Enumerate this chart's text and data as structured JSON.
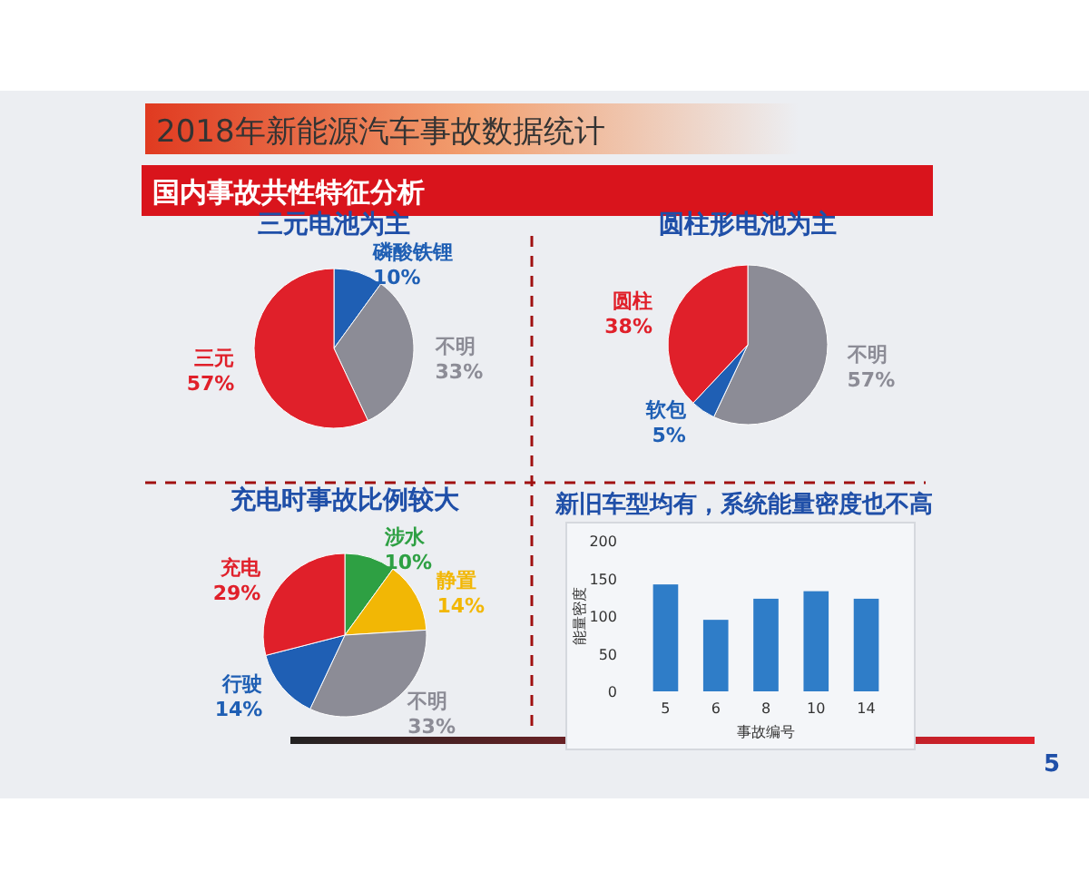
{
  "chart_data": [
    {
      "type": "pie",
      "title": "三元电池为主",
      "annotations": [
        "2018年新能源汽车事故数据统计",
        "国内事故共性特征分析",
        "5"
      ],
      "categories": [
        "磷酸铁锂",
        "不明",
        "三元"
      ],
      "values": [
        10,
        33,
        57
      ],
      "value_labels": [
        "10%",
        "33%",
        "57%"
      ],
      "colors": [
        "#1f5fb4",
        "#8c8c96",
        "#e0202a"
      ]
    },
    {
      "type": "pie",
      "title": "圆柱形电池为主",
      "categories": [
        "不明",
        "软包",
        "圆柱"
      ],
      "values": [
        57,
        5,
        38
      ],
      "value_labels": [
        "57%",
        "5%",
        "38%"
      ],
      "colors": [
        "#8c8c96",
        "#1f5fb4",
        "#e0202a"
      ]
    },
    {
      "type": "pie",
      "title": "充电时事故比例较大",
      "categories": [
        "涉水",
        "静置",
        "不明",
        "行驶",
        "充电"
      ],
      "values": [
        10,
        14,
        33,
        14,
        29
      ],
      "value_labels": [
        "10%",
        "14%",
        "33%",
        "14%",
        "29%"
      ],
      "colors": [
        "#2ea043",
        "#f2b705",
        "#8c8c96",
        "#1f5fb4",
        "#e0202a"
      ]
    },
    {
      "type": "bar",
      "title": "新旧车型均有，系统能量密度也不高",
      "xlabel": "事故编号",
      "ylabel": "能量密度",
      "categories": [
        "5",
        "6",
        "8",
        "10",
        "14"
      ],
      "values": [
        142,
        95,
        123,
        133,
        123
      ],
      "color": "#2f7dc8",
      "ylim": [
        0,
        200
      ],
      "yticks": [
        0,
        50,
        100,
        150,
        200
      ]
    }
  ]
}
